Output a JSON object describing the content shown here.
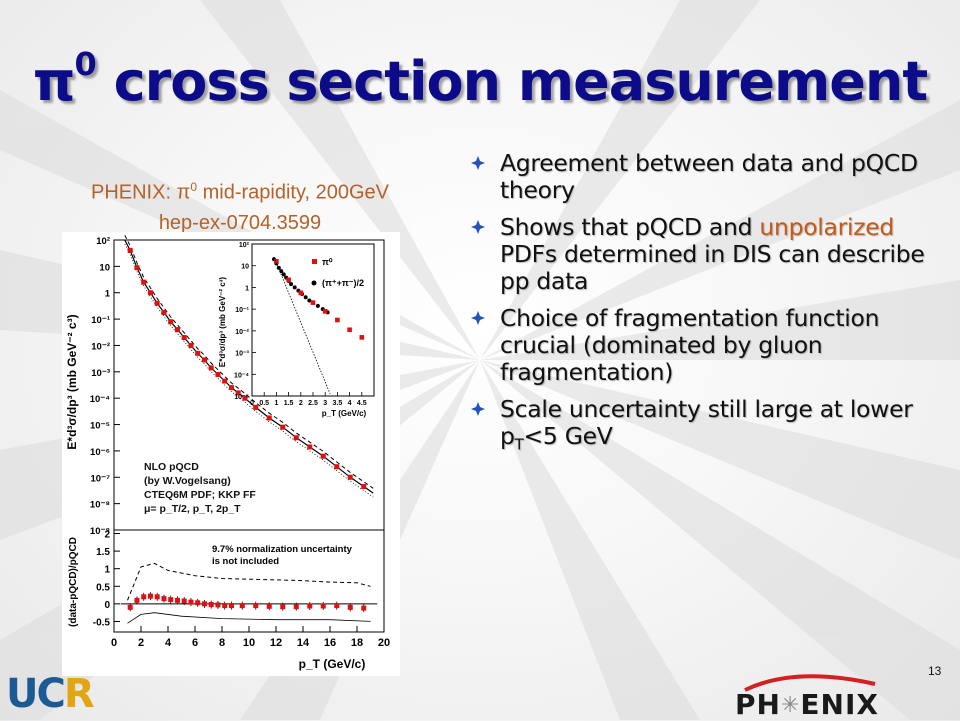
{
  "slide": {
    "title_symbol": "π",
    "title_sup": "0",
    "title_rest": " cross section measurement",
    "page_number": "13"
  },
  "caption": {
    "line1_prefix": "PHENIX: ",
    "line1_symbol": "π",
    "line1_sup": "0",
    "line1_rest": " mid-rapidity, 200GeV",
    "line2": "hep-ex-0704.3599"
  },
  "bullets": [
    {
      "parts": [
        {
          "text": "Agreement between data and pQCD theory",
          "hl": false
        }
      ]
    },
    {
      "parts": [
        {
          "text": "Shows that pQCD and ",
          "hl": false
        },
        {
          "text": "unpolarized",
          "hl": true
        },
        {
          "text": " PDFs determined in DIS can describe pp data",
          "hl": false
        }
      ]
    },
    {
      "parts": [
        {
          "text": "Choice of fragmentation function crucial (dominated by gluon fragmentation)",
          "hl": false
        }
      ]
    },
    {
      "parts": [
        {
          "text": "Scale uncertainty still large at lower p",
          "hl": false
        },
        {
          "text": "T",
          "sub": true
        },
        {
          "text": "<5 GeV",
          "hl": false
        }
      ]
    }
  ],
  "logos": {
    "ucr_u": "U",
    "ucr_c": "C",
    "ucr_r": "R",
    "phenix_pre": "PH",
    "phenix_post": "ENIX"
  },
  "colors": {
    "title": "#0c0c8a",
    "caption": "#b5622a",
    "highlight": "#c45b18",
    "data_marker": "#e01010"
  },
  "chart_data": {
    "type": "scatter",
    "main": {
      "xlim": [
        0,
        20
      ],
      "ylim_log10": [
        -9,
        2
      ],
      "ylabel": "E*d³σ/dp³ (mb GeV⁻² c³)",
      "y_tick_labels": [
        "10²",
        "10",
        "1",
        "10⁻¹",
        "10⁻²",
        "10⁻³",
        "10⁻⁴",
        "10⁻⁵",
        "10⁻⁶",
        "10⁻⁷",
        "10⁻⁸",
        "10⁻⁹"
      ],
      "pi0_points": [
        [
          1.2,
          1.6
        ],
        [
          1.7,
          0.95
        ],
        [
          2.2,
          0.4
        ],
        [
          2.7,
          0.0
        ],
        [
          3.2,
          -0.4
        ],
        [
          3.7,
          -0.75
        ],
        [
          4.2,
          -1.1
        ],
        [
          4.7,
          -1.4
        ],
        [
          5.2,
          -1.7
        ],
        [
          5.7,
          -2.0
        ],
        [
          6.2,
          -2.3
        ],
        [
          6.7,
          -2.55
        ],
        [
          7.2,
          -2.85
        ],
        [
          7.7,
          -3.1
        ],
        [
          8.2,
          -3.35
        ],
        [
          8.7,
          -3.6
        ],
        [
          9.2,
          -3.8
        ],
        [
          9.7,
          -4.0
        ],
        [
          10.5,
          -4.35
        ],
        [
          11.5,
          -4.75
        ],
        [
          12.5,
          -5.1
        ],
        [
          13.5,
          -5.5
        ],
        [
          14.5,
          -5.85
        ],
        [
          15.5,
          -6.2
        ],
        [
          16.5,
          -6.6
        ],
        [
          17.5,
          -7.0
        ],
        [
          18.5,
          -7.35
        ]
      ],
      "annotations": [
        "NLO pQCD",
        "(by W.Vogelsang)",
        "CTEQ6M PDF; KKP FF",
        "μ= p_T/2, p_T, 2p_T"
      ]
    },
    "inset": {
      "xlim": [
        0,
        5
      ],
      "x_tick_labels": [
        "0",
        "0.5",
        "1",
        "1.5",
        "2",
        "2.5",
        "3",
        "3.5",
        "4",
        "4.5"
      ],
      "y_tick_labels": [
        "10²",
        "10",
        "1",
        "10⁻¹",
        "10⁻²",
        "10⁻³",
        "10⁻⁴",
        "10⁻⁵"
      ],
      "ylabel": "E*d³σ/dp³ (mb GeV⁻² c³)",
      "xlabel": "p_T (GeV/c)",
      "legend": [
        "π⁰",
        "(π⁺+π⁻)/2"
      ]
    },
    "ratio": {
      "xlim": [
        0,
        20
      ],
      "ylim": [
        -0.8,
        2.1
      ],
      "ylabel": "(data-pQCD)/pQCD",
      "xlabel": "p_T (GeV/c)",
      "x_tick_labels": [
        "0",
        "2",
        "4",
        "6",
        "8",
        "10",
        "12",
        "14",
        "16",
        "18",
        "20"
      ],
      "y_tick_labels": [
        "2",
        "1.5",
        "1",
        "0.5",
        "0",
        "-0.5"
      ],
      "annotation": [
        "9.7% normalization uncertainty",
        "is not included"
      ],
      "points": [
        [
          1.2,
          -0.1
        ],
        [
          1.7,
          0.1
        ],
        [
          2.2,
          0.2
        ],
        [
          2.7,
          0.22
        ],
        [
          3.2,
          0.2
        ],
        [
          3.7,
          0.15
        ],
        [
          4.2,
          0.12
        ],
        [
          4.7,
          0.1
        ],
        [
          5.2,
          0.08
        ],
        [
          5.7,
          0.05
        ],
        [
          6.2,
          0.03
        ],
        [
          6.7,
          0.0
        ],
        [
          7.2,
          -0.02
        ],
        [
          7.7,
          -0.03
        ],
        [
          8.2,
          -0.05
        ],
        [
          8.7,
          -0.05
        ],
        [
          9.5,
          -0.05
        ],
        [
          10.5,
          -0.05
        ],
        [
          11.5,
          -0.07
        ],
        [
          12.5,
          -0.08
        ],
        [
          13.5,
          -0.08
        ],
        [
          14.5,
          -0.06
        ],
        [
          15.5,
          -0.06
        ],
        [
          16.5,
          -0.05
        ],
        [
          17.5,
          -0.1
        ],
        [
          18.5,
          -0.12
        ]
      ]
    }
  }
}
